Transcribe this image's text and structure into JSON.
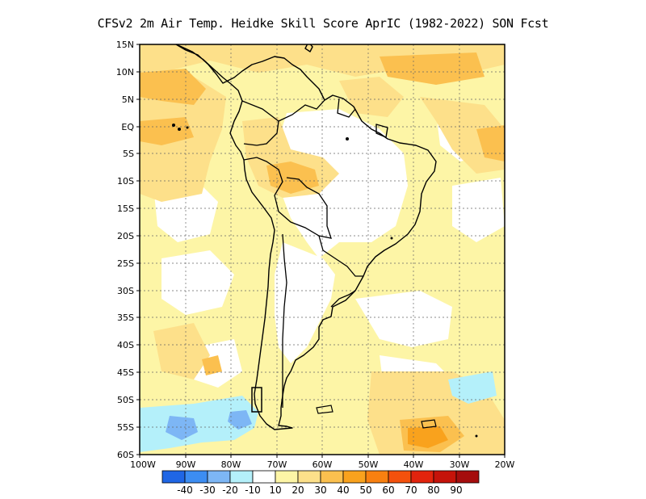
{
  "title": "CFSv2  2m Air Temp. Heidke Skill Score AprIC (1982-2022) SON Fcst",
  "lat_labels": [
    "15N",
    "10N",
    "5N",
    "EQ",
    "5S",
    "10S",
    "15S",
    "20S",
    "25S",
    "30S",
    "35S",
    "40S",
    "45S",
    "50S",
    "55S",
    "60S"
  ],
  "lon_labels": [
    "100W",
    "90W",
    "80W",
    "70W",
    "60W",
    "50W",
    "40W",
    "30W",
    "20W"
  ],
  "colorbar": {
    "boxes": [
      {
        "color": "#1f66e5"
      },
      {
        "color": "#3c8df2"
      },
      {
        "color": "#7db6f5"
      },
      {
        "color": "#b4f0fa"
      },
      {
        "color": "#ffffff"
      },
      {
        "color": "#fdf5a6"
      },
      {
        "color": "#fde08a"
      },
      {
        "color": "#fbc04f"
      },
      {
        "color": "#f9a21d"
      },
      {
        "color": "#f88010"
      },
      {
        "color": "#f4510d"
      },
      {
        "color": "#e2240d"
      },
      {
        "color": "#c5130a"
      },
      {
        "color": "#a50d0d"
      }
    ],
    "labels": [
      "-40",
      "-30",
      "-20",
      "-10",
      "10",
      "20",
      "30",
      "40",
      "50",
      "60",
      "70",
      "80",
      "90"
    ]
  }
}
